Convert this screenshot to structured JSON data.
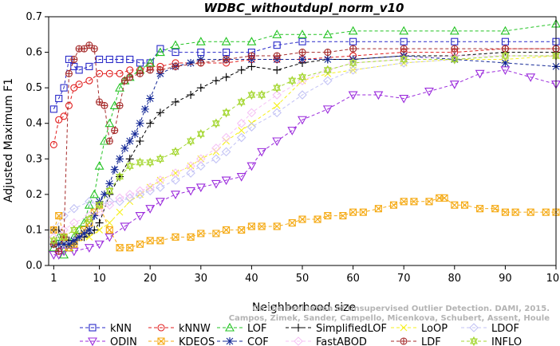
{
  "chart_data": {
    "type": "line",
    "title": "WDBC_withoutdupl_norm_v10",
    "xlabel": "Neighborhood size",
    "ylabel": "Adjusted Maximum F1",
    "xlim": [
      0,
      100
    ],
    "ylim": [
      0,
      0.7
    ],
    "xticks": [
      1,
      10,
      20,
      30,
      40,
      50,
      60,
      70,
      80,
      90,
      100
    ],
    "yticks": [
      0.0,
      0.1,
      0.2,
      0.3,
      0.4,
      0.5,
      0.6,
      0.7
    ],
    "grid": false,
    "legend_position": "bottom",
    "watermark": [
      "Campos, Zimek, Sander, Campello, Micenkova, Schubert, Assent, Houle",
      "On the Evaluation of Unsupervised Outlier Detection. DAMI, 2015."
    ],
    "series": [
      {
        "name": "kNN",
        "color": "#2929c8",
        "marker": "square",
        "x": [
          1,
          2,
          3,
          4,
          5,
          6,
          8,
          10,
          12,
          14,
          16,
          18,
          20,
          22,
          25,
          30,
          35,
          40,
          45,
          50,
          60,
          70,
          80,
          90,
          100
        ],
        "y": [
          0.44,
          0.47,
          0.5,
          0.58,
          0.56,
          0.55,
          0.56,
          0.58,
          0.58,
          0.58,
          0.58,
          0.57,
          0.57,
          0.61,
          0.6,
          0.6,
          0.6,
          0.6,
          0.62,
          0.63,
          0.63,
          0.63,
          0.63,
          0.63,
          0.63
        ]
      },
      {
        "name": "kNNW",
        "color": "#e11e1e",
        "marker": "circle",
        "x": [
          1,
          2,
          3,
          4,
          5,
          6,
          8,
          10,
          12,
          14,
          16,
          18,
          20,
          22,
          25,
          30,
          35,
          40,
          45,
          50,
          60,
          70,
          80,
          90,
          100
        ],
        "y": [
          0.34,
          0.41,
          0.42,
          0.45,
          0.5,
          0.51,
          0.52,
          0.54,
          0.54,
          0.54,
          0.55,
          0.55,
          0.56,
          0.56,
          0.57,
          0.57,
          0.57,
          0.58,
          0.58,
          0.58,
          0.59,
          0.6,
          0.6,
          0.61,
          0.61
        ]
      },
      {
        "name": "LOF",
        "color": "#23c323",
        "marker": "triangle-up",
        "x": [
          1,
          2,
          3,
          4,
          5,
          6,
          7,
          8,
          9,
          10,
          11,
          12,
          13,
          14,
          15,
          16,
          18,
          20,
          22,
          25,
          30,
          35,
          40,
          45,
          50,
          55,
          60,
          70,
          80,
          90,
          100
        ],
        "y": [
          0.05,
          0.08,
          0.03,
          0.05,
          0.08,
          0.1,
          0.12,
          0.17,
          0.2,
          0.28,
          0.35,
          0.4,
          0.45,
          0.5,
          0.52,
          0.53,
          0.55,
          0.57,
          0.6,
          0.62,
          0.63,
          0.63,
          0.63,
          0.65,
          0.65,
          0.65,
          0.66,
          0.66,
          0.66,
          0.66,
          0.68
        ]
      },
      {
        "name": "SimplifiedLOF",
        "color": "#000000",
        "marker": "plus",
        "x": [
          1,
          2,
          3,
          4,
          5,
          6,
          7,
          8,
          9,
          10,
          12,
          14,
          16,
          18,
          20,
          22,
          25,
          28,
          30,
          33,
          35,
          38,
          40,
          45,
          50,
          55,
          60,
          70,
          80,
          90,
          100
        ],
        "y": [
          0.1,
          0.1,
          0.08,
          0.07,
          0.06,
          0.08,
          0.08,
          0.09,
          0.1,
          0.12,
          0.2,
          0.25,
          0.3,
          0.35,
          0.4,
          0.43,
          0.46,
          0.48,
          0.5,
          0.52,
          0.53,
          0.55,
          0.56,
          0.55,
          0.57,
          0.58,
          0.58,
          0.59,
          0.59,
          0.6,
          0.6
        ]
      },
      {
        "name": "LoOP",
        "color": "#f5f01e",
        "marker": "cross",
        "x": [
          1,
          3,
          5,
          8,
          10,
          12,
          14,
          16,
          18,
          20,
          22,
          25,
          28,
          30,
          33,
          35,
          38,
          40,
          45,
          50,
          55,
          60,
          70,
          80,
          90,
          100
        ],
        "y": [
          0.07,
          0.06,
          0.06,
          0.08,
          0.1,
          0.12,
          0.15,
          0.18,
          0.2,
          0.22,
          0.24,
          0.26,
          0.28,
          0.3,
          0.32,
          0.35,
          0.38,
          0.4,
          0.45,
          0.52,
          0.54,
          0.55,
          0.57,
          0.58,
          0.58,
          0.59
        ]
      },
      {
        "name": "LDOF",
        "color": "#c3c3f5",
        "marker": "diamond",
        "x": [
          1,
          3,
          5,
          8,
          10,
          12,
          14,
          16,
          18,
          20,
          22,
          25,
          28,
          30,
          33,
          35,
          38,
          40,
          45,
          50,
          55,
          60,
          70,
          80,
          90,
          100
        ],
        "y": [
          0.1,
          0.14,
          0.16,
          0.18,
          0.17,
          0.18,
          0.18,
          0.19,
          0.2,
          0.21,
          0.22,
          0.24,
          0.26,
          0.28,
          0.3,
          0.32,
          0.36,
          0.39,
          0.43,
          0.48,
          0.52,
          0.55,
          0.57,
          0.58,
          0.59,
          0.59
        ]
      },
      {
        "name": "ODIN",
        "color": "#9b2bdc",
        "marker": "triangle-down",
        "x": [
          1,
          2,
          3,
          5,
          8,
          10,
          12,
          15,
          18,
          20,
          22,
          25,
          28,
          30,
          33,
          35,
          38,
          40,
          42,
          45,
          48,
          50,
          55,
          60,
          65,
          70,
          75,
          80,
          85,
          90,
          95,
          100
        ],
        "y": [
          0.03,
          0.03,
          0.04,
          0.04,
          0.05,
          0.06,
          0.08,
          0.11,
          0.14,
          0.16,
          0.18,
          0.2,
          0.21,
          0.22,
          0.23,
          0.24,
          0.25,
          0.28,
          0.32,
          0.35,
          0.38,
          0.41,
          0.44,
          0.48,
          0.48,
          0.47,
          0.49,
          0.51,
          0.54,
          0.55,
          0.53,
          0.51
        ]
      },
      {
        "name": "KDEOS",
        "color": "#f5aa14",
        "marker": "square-cross",
        "x": [
          1,
          2,
          3,
          4,
          5,
          6,
          7,
          8,
          9,
          10,
          12,
          14,
          16,
          18,
          20,
          22,
          25,
          28,
          30,
          33,
          35,
          38,
          40,
          42,
          45,
          48,
          50,
          53,
          55,
          58,
          60,
          62,
          65,
          68,
          70,
          72,
          75,
          77,
          78,
          80,
          82,
          85,
          88,
          90,
          92,
          95,
          98,
          100
        ],
        "y": [
          0.1,
          0.14,
          0.08,
          0.05,
          0.06,
          0.08,
          0.1,
          0.12,
          0.15,
          0.17,
          0.1,
          0.05,
          0.05,
          0.06,
          0.07,
          0.07,
          0.08,
          0.08,
          0.09,
          0.09,
          0.1,
          0.1,
          0.11,
          0.11,
          0.11,
          0.12,
          0.13,
          0.13,
          0.14,
          0.14,
          0.15,
          0.15,
          0.16,
          0.17,
          0.18,
          0.18,
          0.18,
          0.19,
          0.19,
          0.17,
          0.17,
          0.16,
          0.16,
          0.15,
          0.15,
          0.15,
          0.15,
          0.15
        ]
      },
      {
        "name": "COF",
        "color": "#142896",
        "marker": "asterisk",
        "x": [
          1,
          2,
          3,
          4,
          5,
          6,
          7,
          8,
          9,
          10,
          11,
          12,
          13,
          14,
          15,
          16,
          17,
          18,
          19,
          20,
          22,
          25,
          28,
          30,
          35,
          40,
          45,
          50,
          55,
          60,
          70,
          80,
          90,
          100
        ],
        "y": [
          0.06,
          0.06,
          0.06,
          0.06,
          0.07,
          0.08,
          0.09,
          0.1,
          0.14,
          0.18,
          0.2,
          0.23,
          0.27,
          0.3,
          0.33,
          0.35,
          0.37,
          0.4,
          0.44,
          0.47,
          0.54,
          0.56,
          0.57,
          0.58,
          0.58,
          0.58,
          0.58,
          0.58,
          0.58,
          0.58,
          0.59,
          0.58,
          0.57,
          0.56
        ]
      },
      {
        "name": "FastABOD",
        "color": "#f5c3f5",
        "marker": "diamond",
        "x": [
          1,
          3,
          5,
          8,
          10,
          12,
          14,
          16,
          18,
          20,
          22,
          25,
          28,
          30,
          33,
          35,
          38,
          40,
          45,
          50,
          55,
          60,
          70,
          80,
          90,
          100
        ],
        "y": [
          0.08,
          0.1,
          0.12,
          0.14,
          0.15,
          0.17,
          0.19,
          0.2,
          0.21,
          0.22,
          0.24,
          0.26,
          0.28,
          0.3,
          0.33,
          0.36,
          0.4,
          0.43,
          0.48,
          0.52,
          0.55,
          0.57,
          0.58,
          0.59,
          0.59,
          0.59
        ]
      },
      {
        "name": "LDF",
        "color": "#a52a2a",
        "marker": "circle-plus",
        "x": [
          1,
          2,
          3,
          4,
          5,
          6,
          7,
          8,
          9,
          10,
          11,
          12,
          13,
          14,
          15,
          16,
          18,
          20,
          22,
          25,
          30,
          35,
          40,
          45,
          50,
          55,
          60,
          70,
          80,
          90,
          100
        ],
        "y": [
          0.06,
          0.04,
          0.08,
          0.54,
          0.58,
          0.61,
          0.61,
          0.62,
          0.61,
          0.46,
          0.45,
          0.35,
          0.38,
          0.45,
          0.52,
          0.53,
          0.54,
          0.55,
          0.55,
          0.56,
          0.57,
          0.58,
          0.59,
          0.59,
          0.6,
          0.6,
          0.61,
          0.61,
          0.61,
          0.61,
          0.61
        ]
      },
      {
        "name": "INFLO",
        "color": "#a5d732",
        "marker": "star",
        "x": [
          1,
          3,
          5,
          8,
          10,
          12,
          14,
          16,
          18,
          20,
          22,
          25,
          28,
          30,
          33,
          35,
          38,
          40,
          42,
          45,
          48,
          50,
          55,
          60,
          70,
          80,
          90,
          100
        ],
        "y": [
          0.07,
          0.08,
          0.1,
          0.13,
          0.17,
          0.21,
          0.25,
          0.28,
          0.29,
          0.29,
          0.3,
          0.32,
          0.35,
          0.37,
          0.4,
          0.43,
          0.46,
          0.48,
          0.48,
          0.5,
          0.52,
          0.53,
          0.55,
          0.57,
          0.58,
          0.58,
          0.59,
          0.59
        ]
      }
    ]
  }
}
